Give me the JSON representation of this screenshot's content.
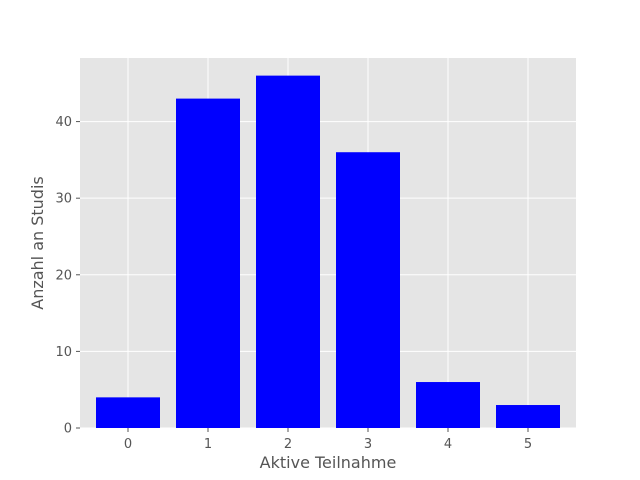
{
  "chart_data": {
    "type": "bar",
    "title": "",
    "xlabel": "Aktive Teilnahme",
    "ylabel": "Anzahl an Studis",
    "categories": [
      "0",
      "1",
      "2",
      "3",
      "4",
      "5"
    ],
    "values": [
      4,
      43,
      46,
      36,
      6,
      3
    ],
    "xlim": [
      -0.6,
      5.6
    ],
    "ylim": [
      0,
      48.3
    ],
    "yticks": [
      0,
      10,
      20,
      30,
      40
    ],
    "yticks_labels": [
      "0",
      "10",
      "20",
      "30",
      "40"
    ],
    "grid": true,
    "style": "ggplot",
    "bar_color": "#0000ff",
    "plot_background": "#e5e5e5",
    "grid_color": "#ffffff"
  }
}
